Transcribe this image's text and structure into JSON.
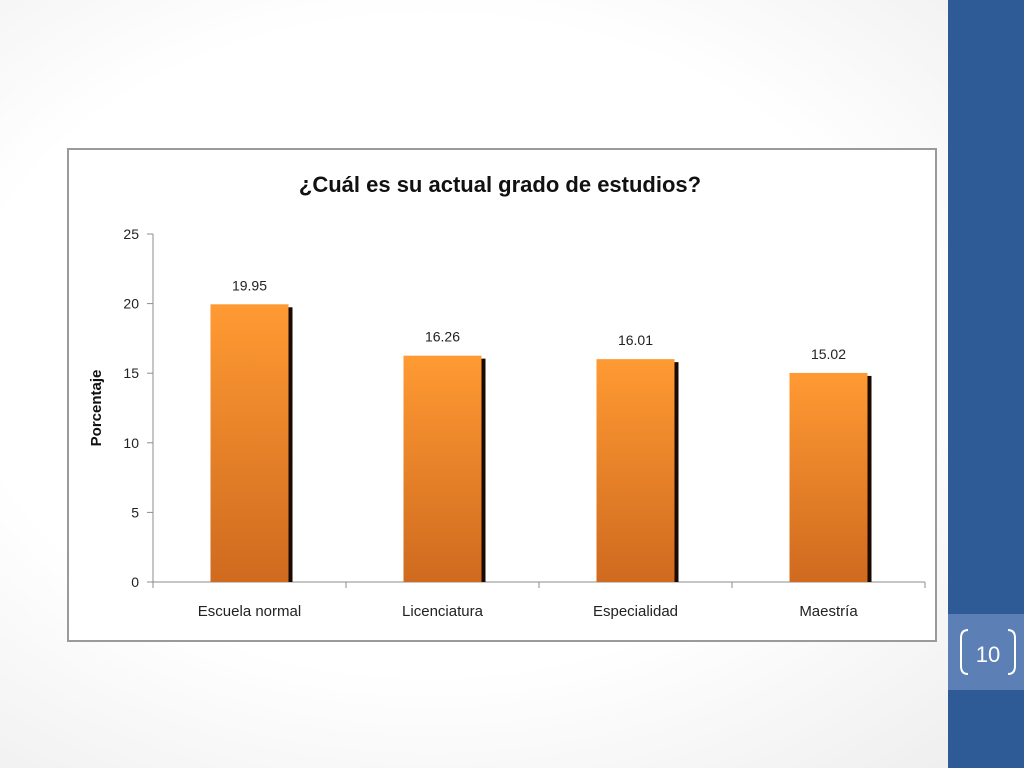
{
  "slide": {
    "page_number": "10",
    "colors": {
      "side_band": "#2e5a96",
      "badge": "#5c7fb5",
      "bar_top": "#ff9a33",
      "bar_bottom": "#cf6a1f"
    }
  },
  "chart_data": {
    "type": "bar",
    "title": "¿Cuál es su actual grado de estudios?",
    "xlabel": "",
    "ylabel": "Porcentaje",
    "categories": [
      "Escuela normal",
      "Licenciatura",
      "Especialidad",
      "Maestría"
    ],
    "values": [
      19.95,
      16.26,
      16.01,
      15.02
    ],
    "data_labels": [
      "19.95",
      "16.26",
      "16.01",
      "15.02"
    ],
    "ylim": [
      0,
      25
    ],
    "yticks": [
      0,
      5,
      10,
      15,
      20,
      25
    ],
    "grid": false,
    "legend": "none"
  }
}
